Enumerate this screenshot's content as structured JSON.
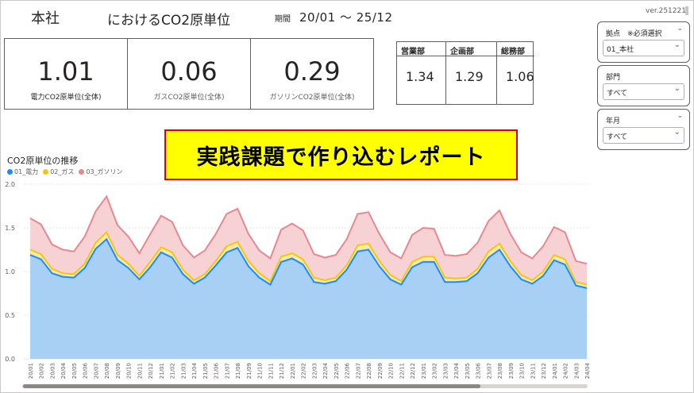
{
  "header": {
    "org": "本社",
    "title": "におけるCO2原単位",
    "period_label": "期間",
    "period_value": "20/01 ～ 25/12",
    "version": "ver.251221"
  },
  "kpis": [
    {
      "value": "1.01",
      "label": "電力CO2原単位(全体)"
    },
    {
      "value": "0.06",
      "label": "ガスCO2原単位(全体)"
    },
    {
      "value": "0.29",
      "label": "ガソリンCO2原単位(全体)"
    }
  ],
  "departments": {
    "headers": [
      "営業部",
      "企画部",
      "総務部"
    ],
    "values": [
      "1.34",
      "1.29",
      "1.06"
    ]
  },
  "slicers": [
    {
      "title": "拠点　※必須選択",
      "value": "01_本社"
    },
    {
      "title": "部門",
      "value": "すべて"
    },
    {
      "title": "年月",
      "value": "すべて"
    }
  ],
  "banner": "実践課題で作り込むレポート",
  "colors": {
    "electric": "#1a8cff",
    "electric_fill": "#a8d0f5",
    "gas": "#f2c80f",
    "gas_fill": "#f7e9a8",
    "gasoline": "#e8878f",
    "gasoline_fill": "#f7d2d5"
  },
  "chart_data": {
    "type": "area",
    "title": "CO2原単位の推移",
    "stacked": true,
    "ylim": [
      0,
      2.0
    ],
    "yticks": [
      "0.0",
      "0.5",
      "1.0",
      "1.5",
      "2.0"
    ],
    "grid": true,
    "legend_position": "top-left",
    "x": [
      "20/01",
      "20/02",
      "20/03",
      "20/04",
      "20/05",
      "20/06",
      "20/07",
      "20/08",
      "20/09",
      "20/10",
      "20/11",
      "20/12",
      "21/01",
      "21/02",
      "21/03",
      "21/04",
      "21/05",
      "21/06",
      "21/07",
      "21/08",
      "21/09",
      "21/10",
      "21/11",
      "21/12",
      "22/01",
      "22/02",
      "22/03",
      "22/04",
      "22/05",
      "22/06",
      "22/07",
      "22/08",
      "22/09",
      "22/10",
      "22/11",
      "22/12",
      "23/01",
      "23/02",
      "23/03",
      "23/04",
      "23/05",
      "23/06",
      "23/07",
      "23/08",
      "23/09",
      "23/10",
      "23/11",
      "23/12",
      "24/01",
      "24/02",
      "24/03",
      "24/04"
    ],
    "series": [
      {
        "name": "01_電力",
        "values": [
          1.19,
          1.14,
          0.98,
          0.94,
          0.93,
          1.04,
          1.26,
          1.37,
          1.13,
          1.04,
          0.91,
          1.05,
          1.22,
          1.16,
          0.97,
          0.86,
          0.93,
          1.07,
          1.22,
          1.27,
          1.06,
          0.93,
          0.85,
          1.11,
          1.15,
          1.08,
          0.88,
          0.86,
          0.89,
          1.02,
          1.23,
          1.25,
          1.06,
          0.91,
          0.85,
          1.05,
          1.11,
          1.11,
          0.88,
          0.88,
          0.89,
          0.98,
          1.16,
          1.25,
          1.06,
          0.91,
          0.86,
          0.95,
          1.13,
          1.08,
          0.84,
          0.81
        ]
      },
      {
        "name": "02_ガス",
        "values": [
          0.06,
          0.06,
          0.05,
          0.04,
          0.04,
          0.05,
          0.07,
          0.08,
          0.06,
          0.05,
          0.04,
          0.06,
          0.06,
          0.06,
          0.05,
          0.04,
          0.04,
          0.05,
          0.07,
          0.07,
          0.06,
          0.05,
          0.04,
          0.06,
          0.06,
          0.06,
          0.05,
          0.04,
          0.04,
          0.05,
          0.07,
          0.07,
          0.06,
          0.05,
          0.04,
          0.06,
          0.06,
          0.06,
          0.05,
          0.04,
          0.04,
          0.05,
          0.07,
          0.07,
          0.06,
          0.05,
          0.04,
          0.05,
          0.06,
          0.06,
          0.04,
          0.04
        ]
      },
      {
        "name": "03_ガソリン",
        "values": [
          0.36,
          0.34,
          0.28,
          0.27,
          0.26,
          0.31,
          0.36,
          0.41,
          0.34,
          0.31,
          0.26,
          0.32,
          0.36,
          0.35,
          0.28,
          0.26,
          0.27,
          0.31,
          0.37,
          0.38,
          0.31,
          0.26,
          0.26,
          0.31,
          0.34,
          0.33,
          0.27,
          0.26,
          0.26,
          0.3,
          0.36,
          0.36,
          0.31,
          0.26,
          0.26,
          0.31,
          0.33,
          0.32,
          0.26,
          0.26,
          0.27,
          0.3,
          0.35,
          0.38,
          0.31,
          0.26,
          0.25,
          0.29,
          0.32,
          0.31,
          0.24,
          0.24
        ]
      }
    ]
  }
}
